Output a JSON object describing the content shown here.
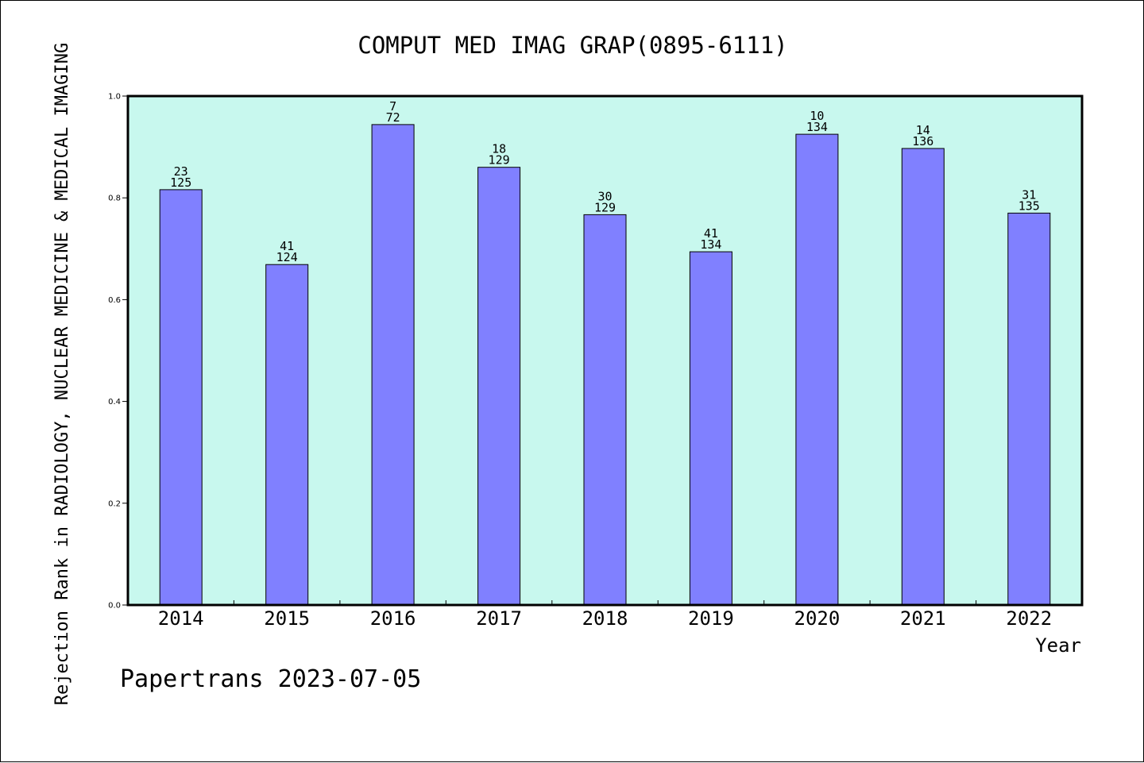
{
  "chart_data": {
    "type": "bar",
    "title": "COMPUT MED IMAG GRAP(0895-6111)",
    "xlabel": "Year",
    "ylabel": "Rejection Rank in RADIOLOGY, NUCLEAR MEDICINE & MEDICAL IMAGING",
    "categories": [
      "2014",
      "2015",
      "2016",
      "2017",
      "2018",
      "2019",
      "2020",
      "2021",
      "2022"
    ],
    "values": [
      0.816,
      0.669,
      0.944,
      0.86,
      0.767,
      0.694,
      0.925,
      0.897,
      0.77
    ],
    "labels_top": [
      "23",
      "41",
      "7",
      "18",
      "30",
      "41",
      "10",
      "14",
      "31"
    ],
    "labels_bottom": [
      "125",
      "124",
      "72",
      "129",
      "129",
      "134",
      "134",
      "136",
      "135"
    ],
    "yticks": [
      "0.0",
      "0.2",
      "0.4",
      "0.6",
      "0.8",
      "1.0"
    ],
    "ylim": [
      0,
      1.0
    ],
    "grid": false,
    "colors": {
      "bar": "#8080ff",
      "plot_background": "#c8f8ee",
      "axis": "#000000"
    }
  },
  "footer": {
    "text": "Papertrans 2023-07-05"
  }
}
